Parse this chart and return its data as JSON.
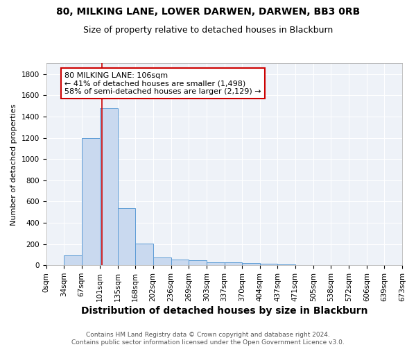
{
  "title1": "80, MILKING LANE, LOWER DARWEN, DARWEN, BB3 0RB",
  "title2": "Size of property relative to detached houses in Blackburn",
  "xlabel": "Distribution of detached houses by size in Blackburn",
  "ylabel": "Number of detached properties",
  "bin_edges": [
    0,
    34,
    67,
    101,
    135,
    168,
    202,
    236,
    269,
    303,
    337,
    370,
    404,
    437,
    471,
    505,
    538,
    572,
    606,
    639,
    673
  ],
  "bar_heights": [
    0,
    90,
    1200,
    1480,
    540,
    205,
    70,
    55,
    45,
    30,
    25,
    20,
    15,
    10,
    3,
    2,
    1,
    1,
    1,
    1
  ],
  "bar_color": "#c9d9ef",
  "bar_edge_color": "#5b9bd5",
  "bar_edge_width": 0.7,
  "property_line_x": 106,
  "property_line_color": "#cc0000",
  "annotation_box_text": "80 MILKING LANE: 106sqm\n← 41% of detached houses are smaller (1,498)\n58% of semi-detached houses are larger (2,129) →",
  "ylim": [
    0,
    1900
  ],
  "yticks": [
    0,
    200,
    400,
    600,
    800,
    1000,
    1200,
    1400,
    1600,
    1800
  ],
  "background_color": "#eef2f8",
  "grid_color": "#ffffff",
  "footer_text": "Contains HM Land Registry data © Crown copyright and database right 2024.\nContains public sector information licensed under the Open Government Licence v3.0.",
  "title1_fontsize": 10,
  "title2_fontsize": 9,
  "xlabel_fontsize": 10,
  "ylabel_fontsize": 8,
  "tick_fontsize": 7.5,
  "annotation_fontsize": 8,
  "footer_fontsize": 6.5
}
